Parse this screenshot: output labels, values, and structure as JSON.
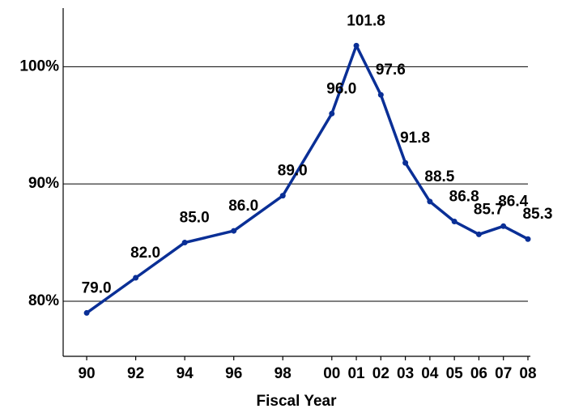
{
  "chart_data": {
    "type": "line",
    "x_label": "Fiscal Year",
    "x": [
      90,
      92,
      94,
      96,
      98,
      100,
      101,
      102,
      103,
      104,
      105,
      106,
      107,
      108
    ],
    "series": [
      {
        "color": "#0a2f96",
        "values": [
          79.0,
          82.0,
          85.0,
          86.0,
          89.0,
          96.0,
          101.8,
          97.6,
          91.8,
          88.5,
          86.8,
          85.7,
          86.4,
          85.3
        ],
        "value_labels": [
          "79.0",
          "82.0",
          "85.0",
          "86.0",
          "89.0",
          "96.0",
          "101.8",
          "97.6",
          "91.8",
          "88.5",
          "86.8",
          "85.7",
          "86.4",
          "85.3"
        ]
      }
    ],
    "xlim": [
      89.04,
      108.1
    ],
    "xticks": [
      90,
      92,
      94,
      96,
      98,
      {
        "value": 100,
        "label": "00"
      },
      {
        "value": 101,
        "label": "01"
      },
      {
        "value": 102,
        "label": "02"
      },
      {
        "value": 103,
        "label": "03"
      },
      {
        "value": 104,
        "label": "04"
      },
      {
        "value": 105,
        "label": "05"
      },
      {
        "value": 106,
        "label": "06"
      },
      {
        "value": 107,
        "label": "07"
      },
      {
        "value": 108,
        "label": "08"
      }
    ],
    "ylim": [
      75.3,
      105
    ],
    "yticks": [
      {
        "value": 80,
        "label": "80%"
      },
      {
        "value": 90,
        "label": "90%"
      },
      {
        "value": 100,
        "label": "100%"
      }
    ],
    "grid": true
  }
}
